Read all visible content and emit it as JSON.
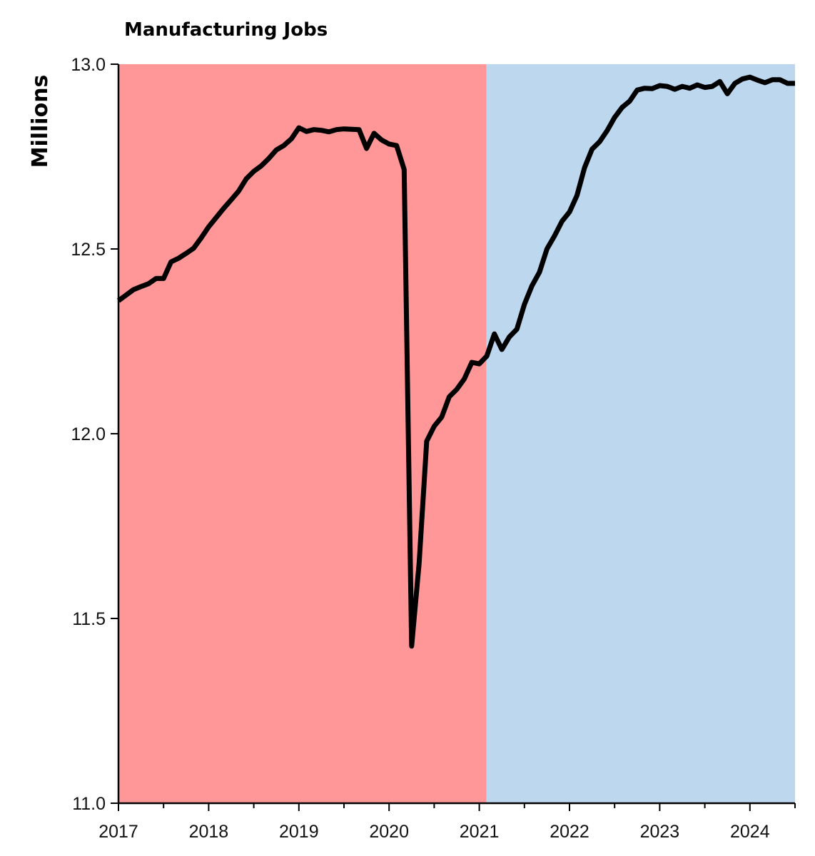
{
  "chart_data": {
    "type": "line",
    "title": "Manufacturing Jobs",
    "xlabel": "",
    "ylabel": "Millions",
    "xlim": [
      2017.0,
      2024.5
    ],
    "ylim": [
      11.0,
      13.0
    ],
    "x_ticks": [
      2017,
      2018,
      2019,
      2020,
      2021,
      2022,
      2023,
      2024
    ],
    "x_tick_labels": [
      "2017",
      "2018",
      "2019",
      "2020",
      "2021",
      "2022",
      "2023",
      "2024"
    ],
    "y_ticks": [
      11.0,
      11.5,
      12.0,
      12.5,
      13.0
    ],
    "y_tick_labels": [
      "11.0",
      "11.5",
      "12.0",
      "12.5",
      "13.0"
    ],
    "grid": false,
    "legend": false,
    "background_bands": [
      {
        "name": "period-1",
        "x_start": 2017.0,
        "x_end": 2021.08,
        "color": "#ff9799"
      },
      {
        "name": "period-2",
        "x_start": 2021.08,
        "x_end": 2024.5,
        "color": "#bdd7ee"
      }
    ],
    "series": [
      {
        "name": "Manufacturing jobs",
        "color": "#000000",
        "x": [
          2017.0,
          2017.083,
          2017.167,
          2017.25,
          2017.333,
          2017.417,
          2017.5,
          2017.583,
          2017.667,
          2017.75,
          2017.833,
          2017.917,
          2018.0,
          2018.083,
          2018.167,
          2018.25,
          2018.333,
          2018.417,
          2018.5,
          2018.583,
          2018.667,
          2018.75,
          2018.833,
          2018.917,
          2019.0,
          2019.083,
          2019.167,
          2019.25,
          2019.333,
          2019.417,
          2019.5,
          2019.583,
          2019.667,
          2019.75,
          2019.833,
          2019.917,
          2020.0,
          2020.083,
          2020.167,
          2020.25,
          2020.333,
          2020.417,
          2020.5,
          2020.583,
          2020.667,
          2020.75,
          2020.833,
          2020.917,
          2021.0,
          2021.083,
          2021.167,
          2021.25,
          2021.333,
          2021.417,
          2021.5,
          2021.583,
          2021.667,
          2021.75,
          2021.833,
          2021.917,
          2022.0,
          2022.083,
          2022.167,
          2022.25,
          2022.333,
          2022.417,
          2022.5,
          2022.583,
          2022.667,
          2022.75,
          2022.833,
          2022.917,
          2023.0,
          2023.083,
          2023.167,
          2023.25,
          2023.333,
          2023.417,
          2023.5,
          2023.583,
          2023.667,
          2023.75,
          2023.833,
          2023.917,
          2024.0,
          2024.083,
          2024.167,
          2024.25,
          2024.333,
          2024.417,
          2024.5
        ],
        "values": [
          12.36,
          12.375,
          12.39,
          12.398,
          12.406,
          12.42,
          12.42,
          12.465,
          12.475,
          12.488,
          12.502,
          12.53,
          12.56,
          12.585,
          12.61,
          12.633,
          12.657,
          12.69,
          12.71,
          12.725,
          12.745,
          12.768,
          12.78,
          12.798,
          12.828,
          12.818,
          12.823,
          12.821,
          12.817,
          12.823,
          12.825,
          12.824,
          12.823,
          12.772,
          12.813,
          12.795,
          12.784,
          12.78,
          12.715,
          11.425,
          11.65,
          11.98,
          12.02,
          12.045,
          12.1,
          12.12,
          12.148,
          12.193,
          12.189,
          12.21,
          12.27,
          12.228,
          12.262,
          12.283,
          12.35,
          12.4,
          12.437,
          12.5,
          12.535,
          12.575,
          12.6,
          12.645,
          12.72,
          12.77,
          12.79,
          12.82,
          12.856,
          12.883,
          12.9,
          12.93,
          12.935,
          12.934,
          12.942,
          12.94,
          12.932,
          12.94,
          12.935,
          12.944,
          12.937,
          12.94,
          12.953,
          12.92,
          12.948,
          12.96,
          12.965,
          12.957,
          12.95,
          12.958,
          12.958,
          12.948,
          12.948
        ]
      }
    ]
  }
}
